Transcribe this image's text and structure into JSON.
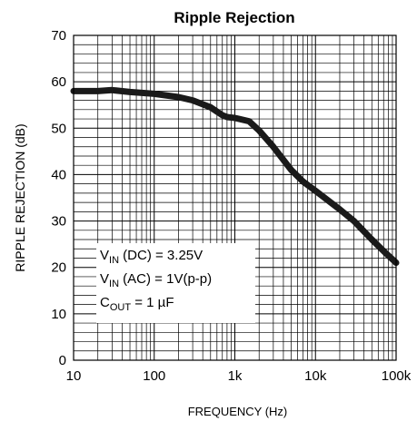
{
  "chart_data": {
    "type": "line",
    "title": "Ripple Rejection",
    "xlabel": "FREQUENCY (Hz)",
    "ylabel": "RIPPLE REJECTION (dB)",
    "xscale": "log",
    "xlim": [
      10,
      100000
    ],
    "ylim": [
      0,
      70
    ],
    "grid": true,
    "x_ticks": [
      10,
      100,
      1000,
      10000,
      100000
    ],
    "x_tick_labels": [
      "10",
      "100",
      "1k",
      "10k",
      "100k"
    ],
    "y_ticks": [
      0,
      10,
      20,
      30,
      40,
      50,
      60,
      70
    ],
    "y_tick_labels": [
      "0",
      "10",
      "20",
      "30",
      "40",
      "50",
      "60",
      "70"
    ],
    "series": [
      {
        "color": "#1a1a1a",
        "x": [
          10,
          20,
          30,
          50,
          100,
          200,
          300,
          500,
          700,
          800,
          1000,
          1500,
          2000,
          3000,
          5000,
          7000,
          10000,
          20000,
          30000,
          50000,
          70000,
          100000
        ],
        "y": [
          58,
          58,
          58.2,
          57.8,
          57.4,
          56.7,
          56,
          54.5,
          52.8,
          52.4,
          52.2,
          51.5,
          49.5,
          46,
          41,
          38.5,
          36.5,
          32.5,
          30,
          26,
          23.5,
          21
        ]
      }
    ],
    "annotations": [
      {
        "main": "V",
        "sub": "IN",
        "rest": " (DC) = 3.25V"
      },
      {
        "main": "V",
        "sub": "IN",
        "rest": " (AC) = 1V(p-p)"
      },
      {
        "main": "C",
        "sub": "OUT",
        "rest": " = 1 µF"
      }
    ]
  }
}
